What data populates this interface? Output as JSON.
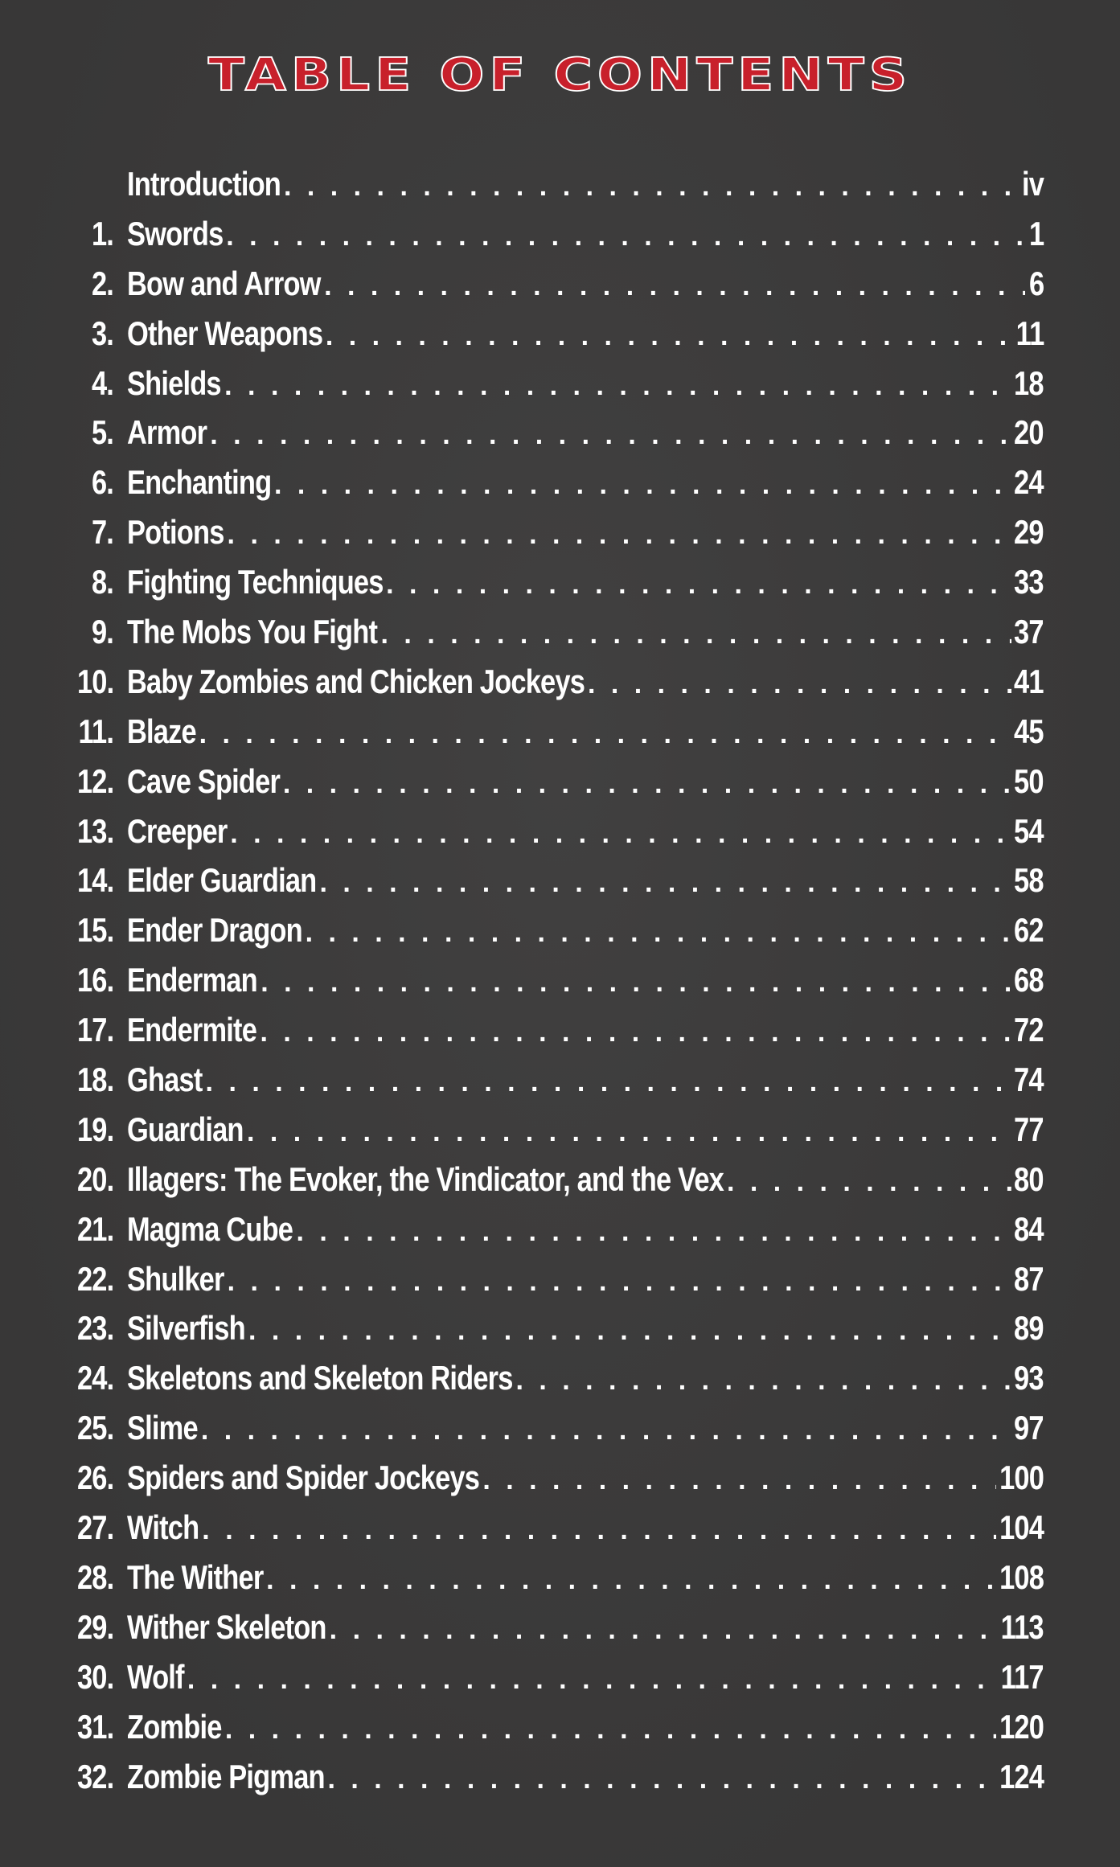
{
  "title": "TABLE OF CONTENTS",
  "colors": {
    "background": "#3b3a3a",
    "title_fill": "#c8202b",
    "title_outline": "#ffffff",
    "text": "#ffffff"
  },
  "entries": [
    {
      "num": "",
      "label": "Introduction",
      "page": "iv"
    },
    {
      "num": "1.",
      "label": "Swords",
      "page": "1"
    },
    {
      "num": "2.",
      "label": "Bow and Arrow",
      "page": "6"
    },
    {
      "num": "3.",
      "label": "Other Weapons",
      "page": "11"
    },
    {
      "num": "4.",
      "label": "Shields",
      "page": "18"
    },
    {
      "num": "5.",
      "label": "Armor",
      "page": "20"
    },
    {
      "num": "6.",
      "label": "Enchanting",
      "page": "24"
    },
    {
      "num": "7.",
      "label": "Potions",
      "page": "29"
    },
    {
      "num": "8.",
      "label": "Fighting Techniques",
      "page": "33"
    },
    {
      "num": "9.",
      "label": "The Mobs You Fight",
      "page": "37"
    },
    {
      "num": "10.",
      "label": "Baby Zombies and Chicken Jockeys",
      "page": "41"
    },
    {
      "num": "11.",
      "label": "Blaze",
      "page": "45"
    },
    {
      "num": "12.",
      "label": "Cave Spider",
      "page": "50"
    },
    {
      "num": "13.",
      "label": "Creeper",
      "page": "54"
    },
    {
      "num": "14.",
      "label": "Elder Guardian",
      "page": "58"
    },
    {
      "num": "15.",
      "label": "Ender Dragon",
      "page": "62"
    },
    {
      "num": "16.",
      "label": "Enderman",
      "page": "68"
    },
    {
      "num": "17.",
      "label": "Endermite",
      "page": "72"
    },
    {
      "num": "18.",
      "label": "Ghast",
      "page": "74"
    },
    {
      "num": "19.",
      "label": "Guardian",
      "page": "77"
    },
    {
      "num": "20.",
      "label": "Illagers: The Evoker, the Vindicator, and the Vex",
      "page": "80"
    },
    {
      "num": "21.",
      "label": "Magma Cube",
      "page": "84"
    },
    {
      "num": "22.",
      "label": "Shulker",
      "page": "87"
    },
    {
      "num": "23.",
      "label": "Silverfish",
      "page": "89"
    },
    {
      "num": "24.",
      "label": "Skeletons and Skeleton Riders",
      "page": "93"
    },
    {
      "num": "25.",
      "label": "Slime",
      "page": "97"
    },
    {
      "num": "26.",
      "label": "Spiders and Spider Jockeys",
      "page": "100"
    },
    {
      "num": "27.",
      "label": "Witch",
      "page": "104"
    },
    {
      "num": "28.",
      "label": "The Wither",
      "page": "108"
    },
    {
      "num": "29.",
      "label": "Wither Skeleton",
      "page": "113"
    },
    {
      "num": "30.",
      "label": "Wolf",
      "page": "117"
    },
    {
      "num": "31.",
      "label": "Zombie",
      "page": "120"
    },
    {
      "num": "32.",
      "label": "Zombie Pigman",
      "page": "124"
    }
  ]
}
